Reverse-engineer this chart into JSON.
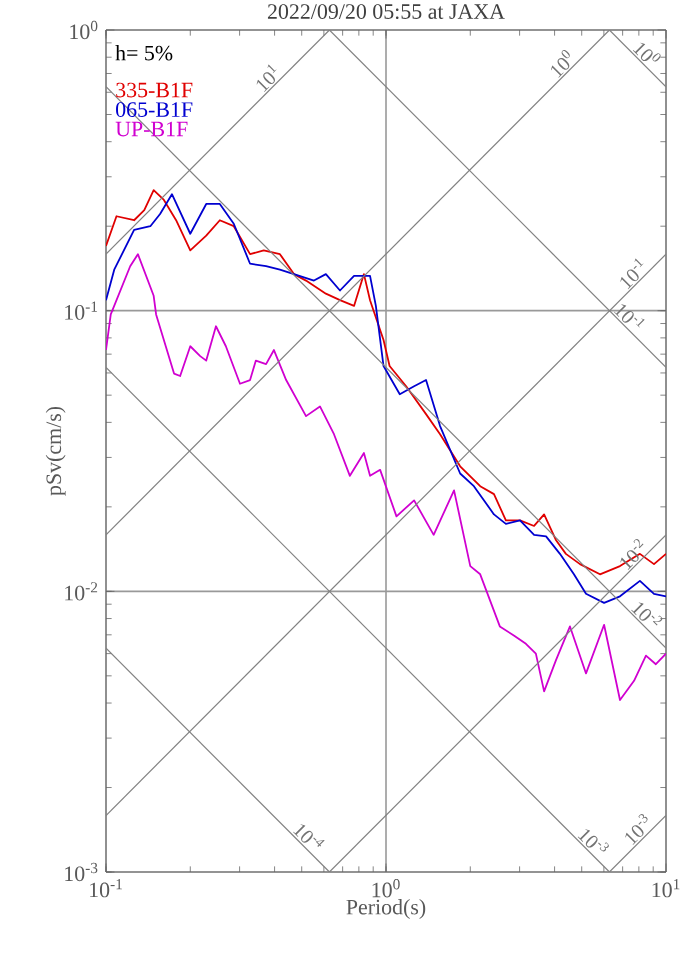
{
  "chart_data": {
    "type": "line",
    "title": "2022/09/20 05:55 at JAXA",
    "xlabel": "Period(s)",
    "ylabel": "pSv(cm/s)",
    "log": "xy",
    "grid": true,
    "legend": "top left",
    "xlim": [
      0.1,
      10
    ],
    "ylim": [
      0.001,
      1
    ],
    "xticks": [
      {
        "value": 0.1,
        "label": "10$^{-1}$"
      },
      {
        "value": 1,
        "label": "10$^{0}$"
      },
      {
        "value": 10,
        "label": "10$^{1}$"
      }
    ],
    "yticks": [
      {
        "value": 0.001,
        "label": "10$^{-3}$"
      },
      {
        "value": 0.01,
        "label": "10$^{-2}$"
      },
      {
        "value": 0.1,
        "label": "10$^{-1}$"
      },
      {
        "value": 1,
        "label": "10$^{0}$"
      }
    ],
    "series": [
      {
        "name": "335-B1F",
        "color": "#e00000",
        "x": [
          0.1,
          0.109,
          0.126,
          0.137,
          0.148,
          0.161,
          0.178,
          0.2,
          0.228,
          0.255,
          0.286,
          0.327,
          0.366,
          0.418,
          0.469,
          0.518,
          0.61,
          0.685,
          0.769,
          0.834,
          0.877,
          0.98,
          1.03,
          1.18,
          1.39,
          1.56,
          1.84,
          2.17,
          2.43,
          2.68,
          3.01,
          3.38,
          3.67,
          4.05,
          4.39,
          4.93,
          5.81,
          6.85,
          8.07,
          9.06,
          10
        ],
        "values": [
          0.17,
          0.217,
          0.21,
          0.228,
          0.269,
          0.248,
          0.21,
          0.164,
          0.185,
          0.21,
          0.2,
          0.159,
          0.164,
          0.159,
          0.135,
          0.128,
          0.115,
          0.109,
          0.104,
          0.135,
          0.109,
          0.0786,
          0.0635,
          0.0538,
          0.0428,
          0.0363,
          0.0279,
          0.0237,
          0.0222,
          0.0179,
          0.0179,
          0.0171,
          0.0188,
          0.0152,
          0.0136,
          0.0125,
          0.0115,
          0.0123,
          0.0136,
          0.0125,
          0.0136
        ]
      },
      {
        "name": "065-B1F",
        "color": "#0000d0",
        "x": [
          0.1,
          0.107,
          0.126,
          0.144,
          0.156,
          0.172,
          0.2,
          0.228,
          0.255,
          0.286,
          0.327,
          0.373,
          0.418,
          0.469,
          0.553,
          0.61,
          0.685,
          0.769,
          0.877,
          0.92,
          0.98,
          1.12,
          1.26,
          1.39,
          1.56,
          1.84,
          2.06,
          2.43,
          2.68,
          3.01,
          3.38,
          3.73,
          4.18,
          4.69,
          5.18,
          6.01,
          6.85,
          8.07,
          9.06,
          10
        ],
        "values": [
          0.109,
          0.14,
          0.194,
          0.2,
          0.221,
          0.26,
          0.188,
          0.24,
          0.24,
          0.204,
          0.147,
          0.144,
          0.14,
          0.135,
          0.128,
          0.135,
          0.118,
          0.133,
          0.133,
          0.104,
          0.0635,
          0.0504,
          0.0538,
          0.0566,
          0.0388,
          0.0263,
          0.0237,
          0.0188,
          0.0174,
          0.0179,
          0.0159,
          0.0157,
          0.0136,
          0.0115,
          0.0098,
          0.0091,
          0.0096,
          0.0109,
          0.0098,
          0.0096
        ]
      },
      {
        "name": "UP-B1F",
        "color": "#d000d0",
        "x": [
          0.1,
          0.104,
          0.122,
          0.13,
          0.148,
          0.151,
          0.175,
          0.184,
          0.2,
          0.217,
          0.228,
          0.247,
          0.268,
          0.301,
          0.327,
          0.343,
          0.373,
          0.398,
          0.44,
          0.518,
          0.581,
          0.652,
          0.743,
          0.834,
          0.877,
          0.953,
          1.09,
          1.26,
          1.48,
          1.75,
          2.0,
          2.17,
          2.55,
          2.87,
          3.16,
          3.43,
          3.67,
          4.05,
          4.54,
          5.18,
          6.01,
          6.85,
          7.69,
          8.48,
          9.2,
          10
        ],
        "values": [
          0.0725,
          0.097,
          0.144,
          0.159,
          0.113,
          0.097,
          0.0597,
          0.0585,
          0.0747,
          0.0689,
          0.0664,
          0.088,
          0.0747,
          0.0549,
          0.0566,
          0.0664,
          0.0645,
          0.0724,
          0.0566,
          0.0421,
          0.0456,
          0.0363,
          0.0258,
          0.0311,
          0.0258,
          0.0271,
          0.0185,
          0.0211,
          0.0159,
          0.0229,
          0.0123,
          0.0115,
          0.0075,
          0.00695,
          0.0065,
          0.006,
          0.0044,
          0.0057,
          0.0075,
          0.0051,
          0.0076,
          0.0041,
          0.0048,
          0.0059,
          0.0055,
          0.006
        ]
      },
      {
        "color": "#808080",
        "x": [
          6.28,
          10
        ],
        "values": [
          1,
          0.628
        ]
      },
      {
        "color": "#808080",
        "x": [
          0.628,
          10
        ],
        "values": [
          1,
          0.0628
        ]
      },
      {
        "color": "#808080",
        "x": [
          0.1,
          10
        ],
        "values": [
          0.628,
          0.00628
        ]
      },
      {
        "color": "#808080",
        "x": [
          0.1,
          6.28
        ],
        "values": [
          0.0628,
          0.001
        ]
      },
      {
        "color": "#808080",
        "x": [
          0.1,
          0.628
        ],
        "values": [
          0.00628,
          0.001
        ]
      },
      {
        "color": "#808080",
        "x": [
          0.1,
          0.628
        ],
        "values": [
          0.159,
          1
        ]
      },
      {
        "color": "#808080",
        "x": [
          0.1,
          6.28
        ],
        "values": [
          0.0159,
          1
        ]
      },
      {
        "color": "#808080",
        "x": [
          0.1,
          10
        ],
        "values": [
          0.00159,
          0.159
        ]
      },
      {
        "color": "#808080",
        "x": [
          0.628,
          10
        ],
        "values": [
          0.001,
          0.0159
        ]
      },
      {
        "color": "#808080",
        "x": [
          6.28,
          10
        ],
        "values": [
          0.001,
          0.00159
        ]
      }
    ],
    "annotations": [
      "h= 5%",
      {
        "text": "10$^{1}$",
        "x": 0.4,
        "y": 0.637
      },
      {
        "text": "10$^{0}$",
        "x": 4.5,
        "y": 0.716
      },
      {
        "text": "10$^{0}$",
        "x": 8.07,
        "y": 0.778
      },
      {
        "text": "10$^{-1}$",
        "x": 8.07,
        "y": 0.128
      },
      {
        "text": "10$^{-1}$",
        "x": 7.0,
        "y": 0.0897
      },
      {
        "text": "10$^{-2}$",
        "x": 8.07,
        "y": 0.0128
      },
      {
        "text": "10$^{-2}$",
        "x": 8.07,
        "y": 0.00778
      },
      {
        "text": "10$^{-4}$",
        "x": 0.5,
        "y": 0.00126
      },
      {
        "text": "10$^{-3}$",
        "x": 5.2,
        "y": 0.00121
      },
      {
        "text": "10$^{-3}$",
        "x": 8.4,
        "y": 0.00134
      }
    ]
  }
}
